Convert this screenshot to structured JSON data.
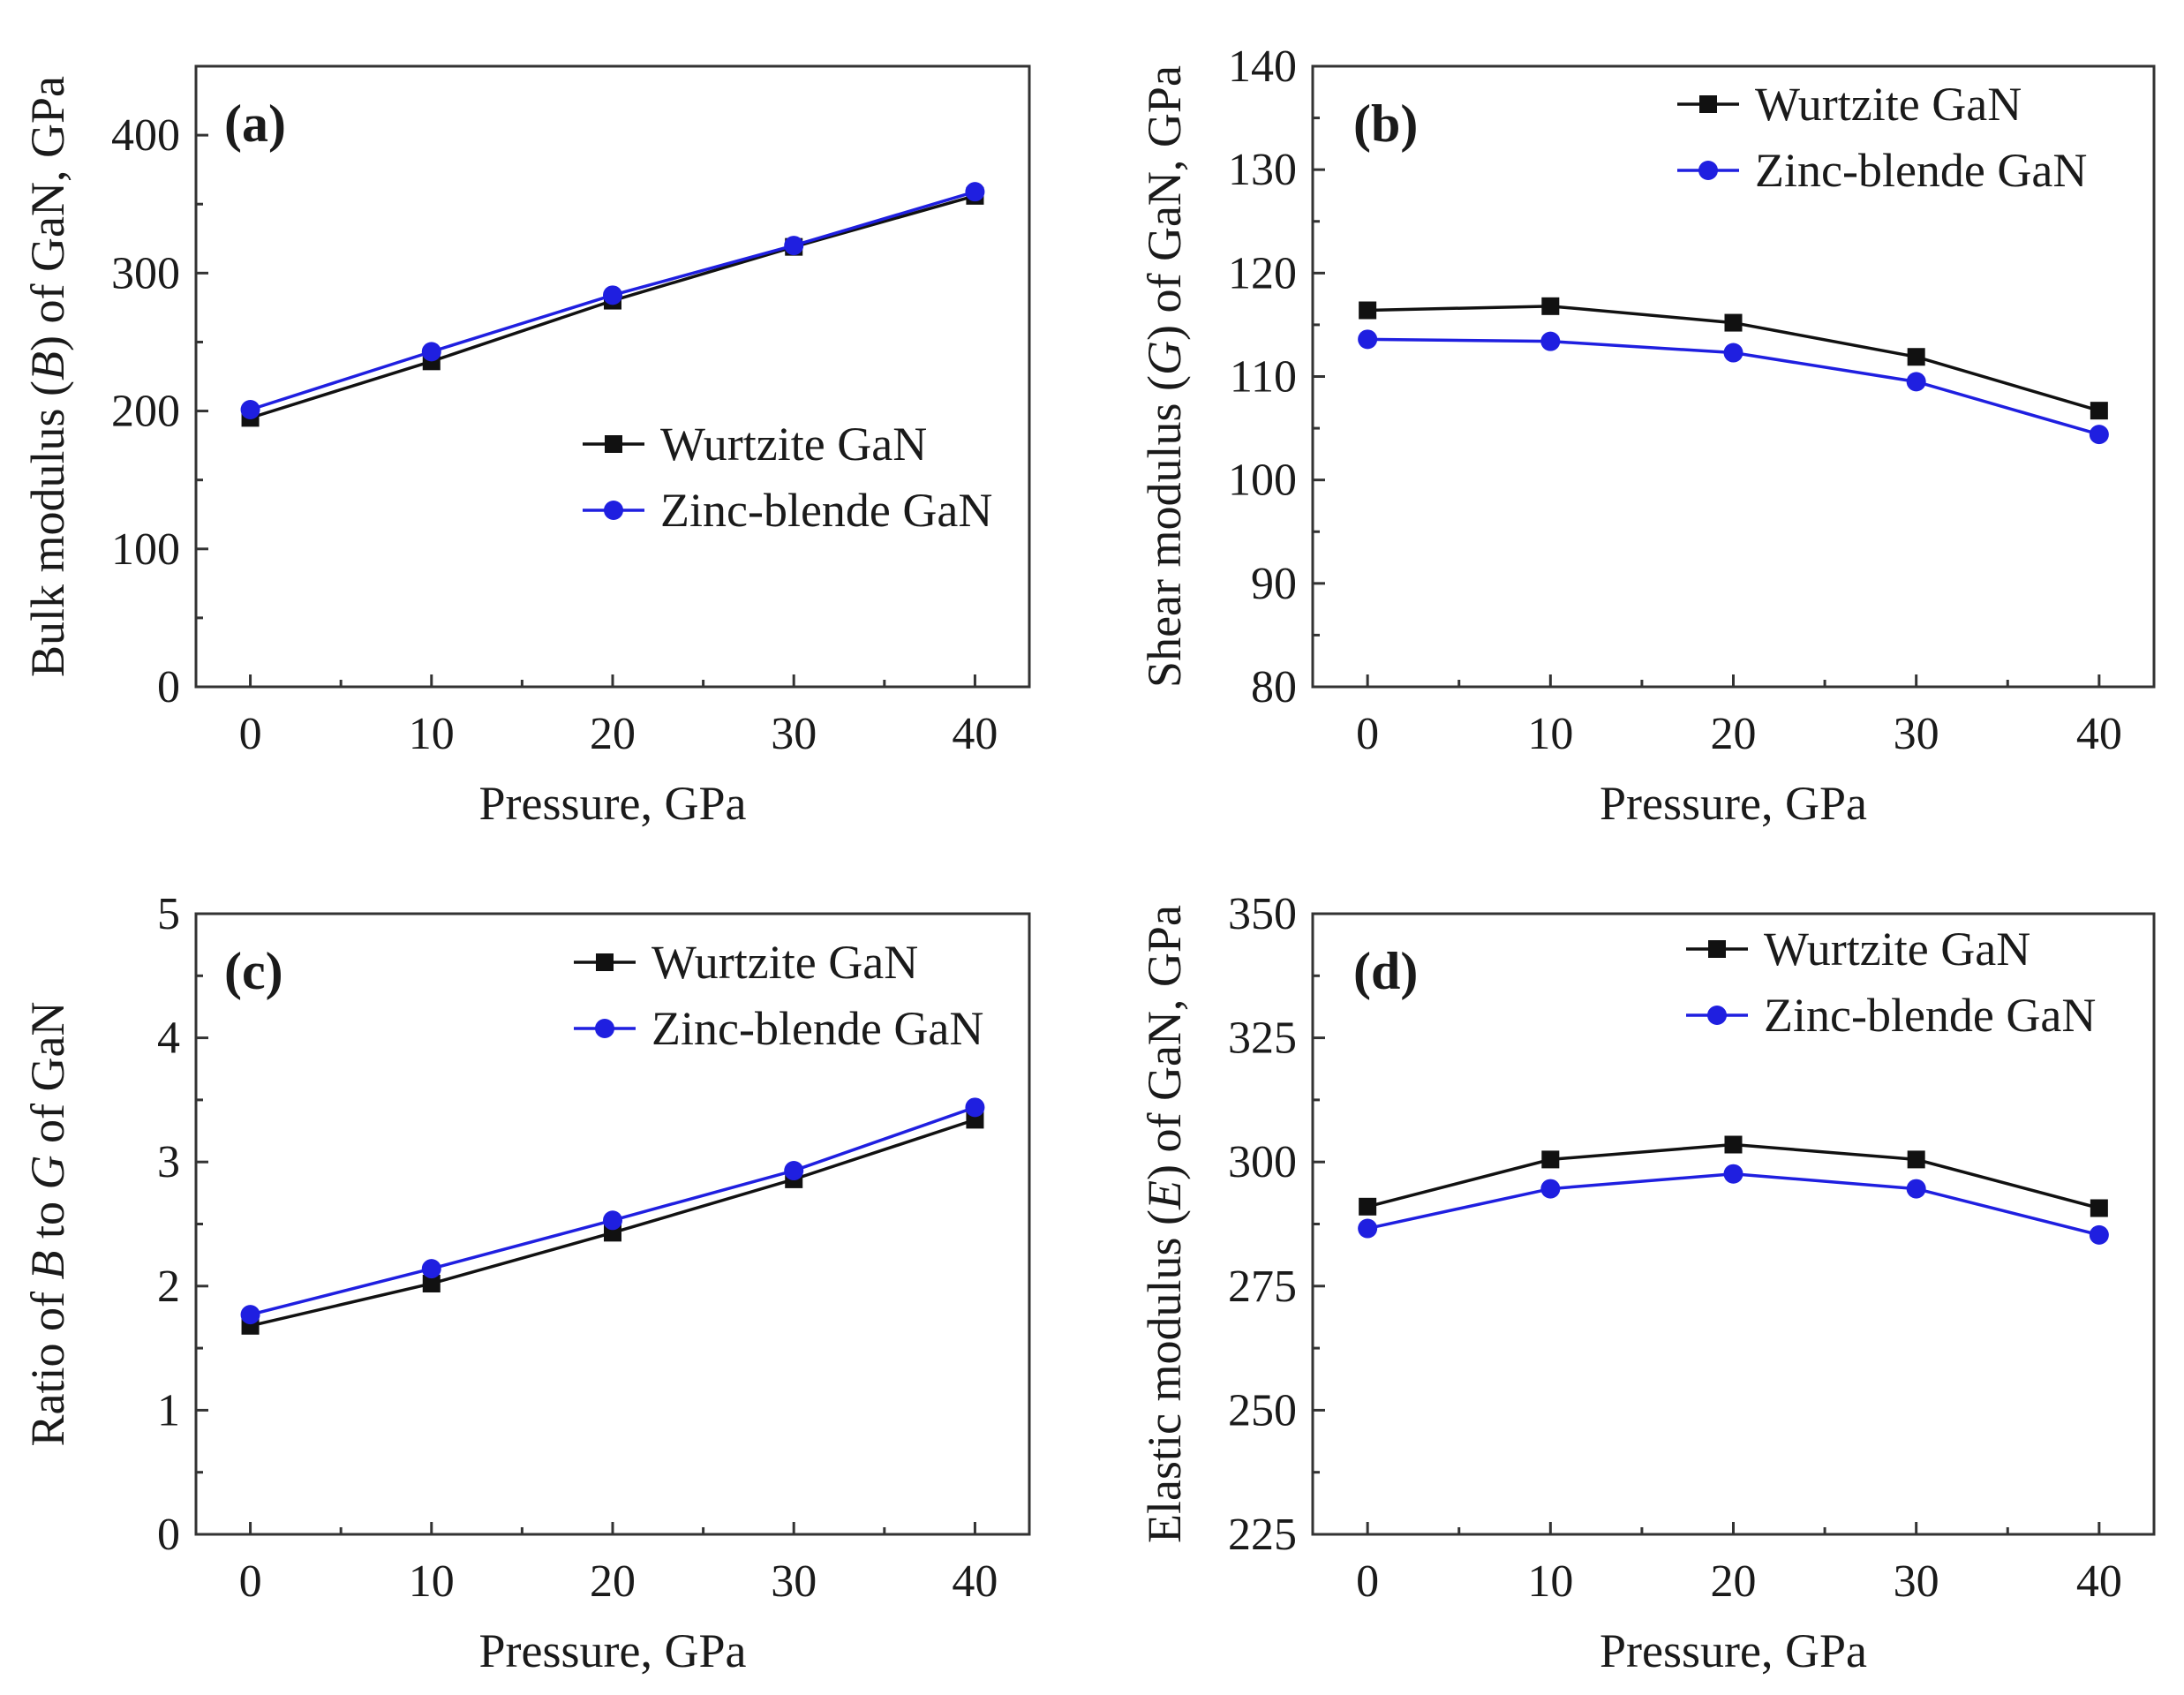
{
  "colors": {
    "wurtzite": "#111111",
    "zincblende": "#1f1fe0",
    "axis": "#333333"
  },
  "chart_data": [
    {
      "id": "a",
      "type": "line",
      "panel_label": "(a)",
      "ylabel_parts": [
        "Bulk modulus (",
        "B",
        ") of GaN, GPa"
      ],
      "xlabel": "Pressure, GPa",
      "x": [
        0,
        10,
        20,
        30,
        40
      ],
      "xlim": [
        -3,
        43
      ],
      "ylim": [
        0,
        450
      ],
      "xticks": [
        0,
        10,
        20,
        30,
        40
      ],
      "yticks": [
        0,
        100,
        200,
        300,
        400
      ],
      "legend_position": "center-right",
      "series": [
        {
          "name": "Wurtzite GaN",
          "marker": "square",
          "color": "#111111",
          "values": [
            195,
            236,
            280,
            319,
            356
          ]
        },
        {
          "name": "Zinc-blende GaN",
          "marker": "circle",
          "color": "#1f1fe0",
          "values": [
            201,
            243,
            284,
            320,
            359
          ]
        }
      ]
    },
    {
      "id": "b",
      "type": "line",
      "panel_label": "(b)",
      "ylabel_parts": [
        "Shear modulus (",
        "G",
        ") of GaN, GPa"
      ],
      "xlabel": "Pressure, GPa",
      "x": [
        0,
        10,
        20,
        30,
        40
      ],
      "xlim": [
        -3,
        43
      ],
      "ylim": [
        80,
        140
      ],
      "xticks": [
        0,
        10,
        20,
        30,
        40
      ],
      "yticks": [
        80,
        90,
        100,
        110,
        120,
        130,
        140
      ],
      "legend_position": "top-right",
      "series": [
        {
          "name": "Wurtzite GaN",
          "marker": "square",
          "color": "#111111",
          "values": [
            116.4,
            116.8,
            115.2,
            111.9,
            106.7
          ]
        },
        {
          "name": "Zinc-blende GaN",
          "marker": "circle",
          "color": "#1f1fe0",
          "values": [
            113.6,
            113.4,
            112.3,
            109.5,
            104.4
          ]
        }
      ]
    },
    {
      "id": "c",
      "type": "line",
      "panel_label": "(c)",
      "ylabel_parts": [
        "Ratio of ",
        "B",
        " to ",
        "G",
        " of GaN"
      ],
      "xlabel": "Pressure, GPa",
      "x": [
        0,
        10,
        20,
        30,
        40
      ],
      "xlim": [
        -3,
        43
      ],
      "ylim": [
        0,
        5
      ],
      "xticks": [
        0,
        10,
        20,
        30,
        40
      ],
      "yticks": [
        0,
        1,
        2,
        3,
        4,
        5
      ],
      "legend_position": "top-right",
      "series": [
        {
          "name": "Wurtzite GaN",
          "marker": "square",
          "color": "#111111",
          "values": [
            1.68,
            2.02,
            2.43,
            2.86,
            3.34
          ]
        },
        {
          "name": "Zinc-blende GaN",
          "marker": "circle",
          "color": "#1f1fe0",
          "values": [
            1.77,
            2.14,
            2.53,
            2.93,
            3.44
          ]
        }
      ]
    },
    {
      "id": "d",
      "type": "line",
      "panel_label": "(d)",
      "ylabel_parts": [
        "Elastic modulus (",
        "E",
        ") of GaN, GPa"
      ],
      "xlabel": "Pressure, GPa",
      "x": [
        0,
        10,
        20,
        30,
        40
      ],
      "xlim": [
        -3,
        43
      ],
      "ylim": [
        225,
        350
      ],
      "xticks": [
        0,
        10,
        20,
        30,
        40
      ],
      "yticks": [
        225,
        250,
        275,
        300,
        325,
        350
      ],
      "legend_position": "top-right",
      "series": [
        {
          "name": "Wurtzite GaN",
          "marker": "square",
          "color": "#111111",
          "values": [
            291,
            300.5,
            303.5,
            300.5,
            290.7
          ]
        },
        {
          "name": "Zinc-blende GaN",
          "marker": "circle",
          "color": "#1f1fe0",
          "values": [
            286.6,
            294.6,
            297.6,
            294.6,
            285.3
          ]
        }
      ]
    }
  ]
}
